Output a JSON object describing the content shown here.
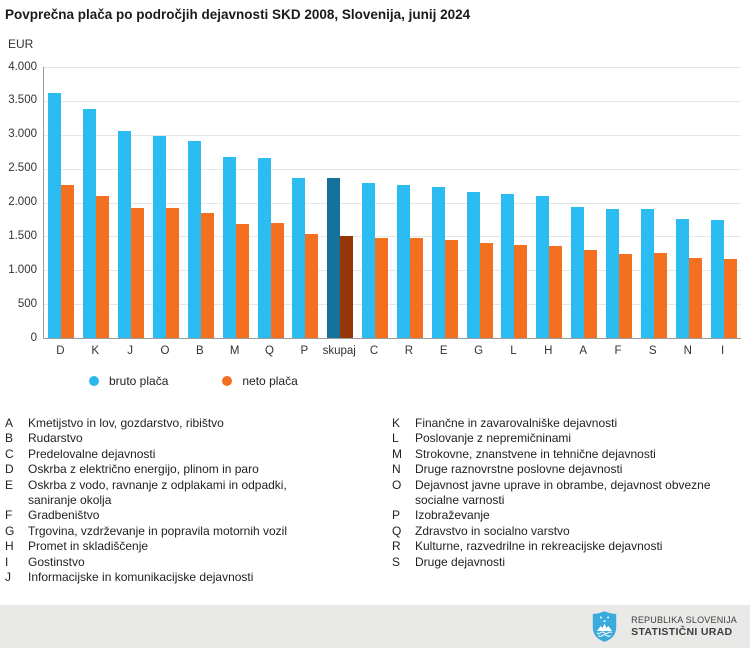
{
  "title": "Povprečna plača po področjih dejavnosti SKD 2008, Slovenija, junij 2024",
  "axis_unit": "EUR",
  "chart_data": {
    "type": "bar",
    "categories": [
      "D",
      "K",
      "J",
      "O",
      "B",
      "M",
      "Q",
      "P",
      "skupaj",
      "C",
      "R",
      "E",
      "G",
      "L",
      "H",
      "A",
      "F",
      "S",
      "N",
      "I"
    ],
    "series": [
      {
        "name": "bruto plača",
        "key": "bruto",
        "color": "#2bbcf2",
        "highlight_color": "#16719b",
        "values": [
          3610,
          3380,
          3050,
          2980,
          2915,
          2670,
          2650,
          2365,
          2362,
          2285,
          2265,
          2225,
          2150,
          2125,
          2090,
          1940,
          1905,
          1900,
          1760,
          1735
        ]
      },
      {
        "name": "neto plača",
        "key": "neto",
        "color": "#f47021",
        "highlight_color": "#953608",
        "values": [
          2265,
          2100,
          1915,
          1920,
          1840,
          1690,
          1695,
          1530,
          1510,
          1470,
          1480,
          1450,
          1405,
          1380,
          1355,
          1300,
          1245,
          1260,
          1180,
          1160
        ]
      }
    ],
    "highlight_category": "skupaj",
    "ylabel": "EUR",
    "ylim": [
      0,
      4000
    ],
    "ytick_step": 500,
    "ytick_labels": [
      "4.000",
      "3.500",
      "3.000",
      "2.500",
      "2.000",
      "1.500",
      "1.000",
      "500",
      "0"
    ],
    "grid": true,
    "legend_position": "below-left"
  },
  "legend": {
    "items": [
      {
        "label": "bruto plača",
        "color": "#29b9ef"
      },
      {
        "label": "neto plača",
        "color": "#f56f20"
      }
    ]
  },
  "activity_legend": {
    "left": [
      {
        "code": "A",
        "label": "Kmetijstvo in lov, gozdarstvo, ribištvo"
      },
      {
        "code": "B",
        "label": "Rudarstvo"
      },
      {
        "code": "C",
        "label": "Predelovalne dejavnosti"
      },
      {
        "code": "D",
        "label": "Oskrba z električno energijo, plinom in paro"
      },
      {
        "code": "E",
        "label": "Oskrba z vodo, ravnanje z odplakami in odpadki, saniranje okolja"
      },
      {
        "code": "F",
        "label": "Gradbeništvo"
      },
      {
        "code": "G",
        "label": "Trgovina, vzdrževanje in popravila motornih vozil"
      },
      {
        "code": "H",
        "label": "Promet in skladiščenje"
      },
      {
        "code": "I",
        "label": "Gostinstvo"
      },
      {
        "code": "J",
        "label": "Informacijske in komunikacijske dejavnosti"
      }
    ],
    "right": [
      {
        "code": "K",
        "label": "Finančne in zavarovalniške dejavnosti"
      },
      {
        "code": "L",
        "label": "Poslovanje z nepremičninami"
      },
      {
        "code": "M",
        "label": "Strokovne, znanstvene in tehnične dejavnosti"
      },
      {
        "code": "N",
        "label": "Druge raznovrstne poslovne dejavnosti"
      },
      {
        "code": "O",
        "label": "Dejavnost javne uprave in obrambe, dejavnost obvezne socialne varnosti"
      },
      {
        "code": "P",
        "label": "Izobraževanje"
      },
      {
        "code": "Q",
        "label": "Zdravstvo in socialno varstvo"
      },
      {
        "code": "R",
        "label": "Kulturne, razvedrilne in rekreacijske dejavnosti"
      },
      {
        "code": "S",
        "label": "Druge dejavnosti"
      }
    ]
  },
  "footer": {
    "org_line1": "REPUBLIKA SLOVENIJA",
    "org_line2": "STATISTIČNI URAD",
    "logo_color": "#3aabdc"
  }
}
